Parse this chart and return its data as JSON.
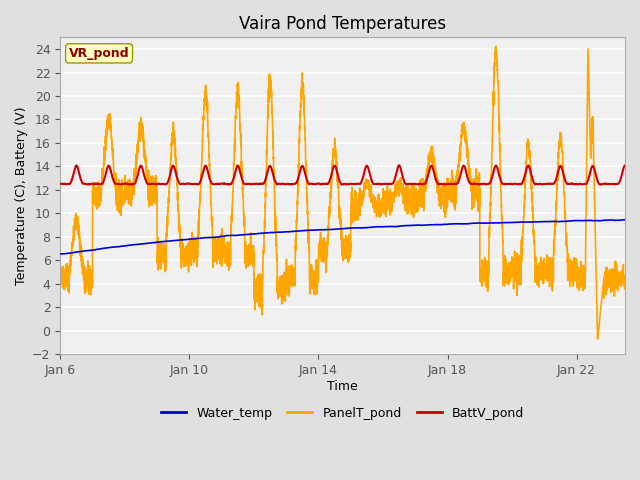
{
  "title": "Vaira Pond Temperatures",
  "xlabel": "Time",
  "ylabel": "Temperature (C), Battery (V)",
  "ylim": [
    -2,
    25
  ],
  "yticks": [
    -2,
    0,
    2,
    4,
    6,
    8,
    10,
    12,
    14,
    16,
    18,
    20,
    22,
    24
  ],
  "x_tick_labels": [
    "Jan 6",
    "Jan 10",
    "Jan 14",
    "Jan 18",
    "Jan 22"
  ],
  "x_tick_positions": [
    0,
    4,
    8,
    12,
    16
  ],
  "xlim": [
    0,
    17.5
  ],
  "annotation_text": "VR_pond",
  "annotation_color": "#8B0000",
  "annotation_bg": "#FFFFC0",
  "annotation_edge": "#999900",
  "fig_bg": "#E0E0E0",
  "plot_bg": "#F0F0F0",
  "water_temp_color": "#0000DD",
  "panel_temp_color": "#FFA500",
  "batt_color": "#CC0000",
  "legend_labels": [
    "Water_temp",
    "PanelT_pond",
    "BattV_pond"
  ],
  "legend_colors": [
    "#0000DD",
    "#FFA500",
    "#CC0000"
  ],
  "linewidth_water": 1.2,
  "linewidth_panel": 1.2,
  "linewidth_batt": 1.5,
  "grid_color": "#FFFFFF",
  "title_fontsize": 12,
  "label_fontsize": 9,
  "tick_fontsize": 9,
  "legend_fontsize": 9
}
